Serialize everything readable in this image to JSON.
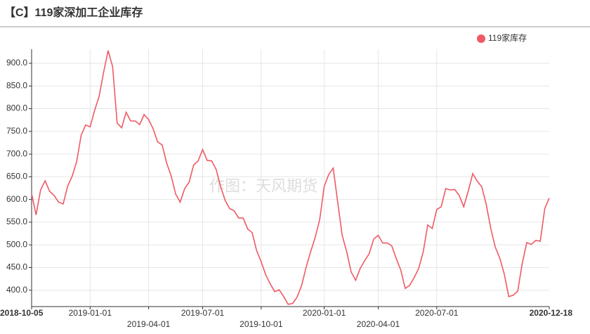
{
  "chart_data": {
    "type": "line",
    "title": "【C】119家深加工企业库存",
    "watermark": "作图：天风期货",
    "categories": [
      "2018-10-05",
      null,
      null,
      null,
      null,
      null,
      null,
      null,
      null,
      null,
      null,
      null,
      null,
      "2019-01-01",
      null,
      null,
      null,
      null,
      null,
      null,
      null,
      null,
      null,
      null,
      null,
      null,
      "2019-04-01",
      null,
      null,
      null,
      null,
      null,
      null,
      null,
      null,
      null,
      null,
      null,
      "2019-07-01",
      null,
      null,
      null,
      null,
      null,
      null,
      null,
      null,
      null,
      null,
      null,
      null,
      "2019-10-01",
      null,
      null,
      null,
      null,
      null,
      null,
      null,
      null,
      null,
      null,
      null,
      null,
      null,
      "2020-01-01",
      null,
      null,
      null,
      null,
      null,
      null,
      null,
      null,
      null,
      null,
      null,
      "2020-04-01",
      null,
      null,
      null,
      null,
      null,
      null,
      null,
      null,
      null,
      null,
      null,
      null,
      "2020-07-01",
      null,
      null,
      null,
      null,
      null,
      null,
      null,
      null,
      null,
      null,
      null,
      null,
      null,
      null,
      null,
      null,
      null,
      null,
      null,
      null,
      null,
      null,
      null,
      null,
      "2020-12-18"
    ],
    "series": [
      {
        "name": "119家库存",
        "color": "#ef5a64",
        "values": [
          613,
          566,
          621,
          641,
          618,
          609,
          594,
          590,
          629,
          651,
          683,
          741,
          764,
          760,
          796,
          827,
          880,
          928,
          892,
          768,
          758,
          792,
          773,
          773,
          765,
          787,
          776,
          756,
          727,
          720,
          680,
          652,
          612,
          594,
          624,
          638,
          676,
          685,
          710,
          686,
          685,
          666,
          628,
          598,
          580,
          575,
          559,
          559,
          535,
          527,
          487,
          463,
          434,
          414,
          397,
          401,
          386,
          369,
          371,
          385,
          411,
          451,
          485,
          516,
          556,
          629,
          655,
          669,
          594,
          521,
          485,
          440,
          422,
          448,
          465,
          481,
          513,
          521,
          504,
          504,
          498,
          470,
          445,
          404,
          411,
          428,
          448,
          485,
          544,
          536,
          578,
          584,
          624,
          621,
          622,
          609,
          584,
          618,
          657,
          640,
          628,
          589,
          536,
          495,
          471,
          436,
          386,
          389,
          398,
          459,
          505,
          501,
          510,
          508,
          580,
          603
        ]
      }
    ],
    "ylim": [
      364,
      931
    ],
    "yticks": [
      {
        "value": 400,
        "label": "400.0"
      },
      {
        "value": 450,
        "label": "450.0"
      },
      {
        "value": 500,
        "label": "500.0"
      },
      {
        "value": 550,
        "label": "550.0"
      },
      {
        "value": 600,
        "label": "600.0"
      },
      {
        "value": 650,
        "label": "650.0"
      },
      {
        "value": 700,
        "label": "700.0"
      },
      {
        "value": 750,
        "label": "750.0"
      },
      {
        "value": 800,
        "label": "800.0"
      },
      {
        "value": 850,
        "label": "850.0"
      },
      {
        "value": 900,
        "label": "900.0"
      }
    ],
    "grid": true,
    "legend": "top-right"
  }
}
